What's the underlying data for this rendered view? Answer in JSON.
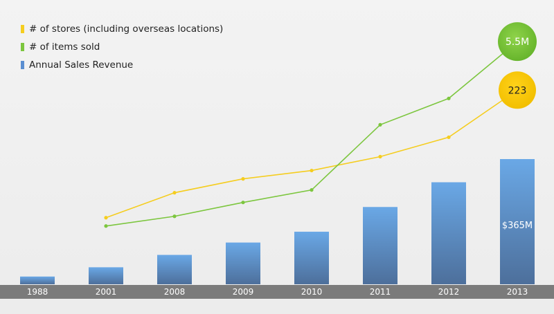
{
  "chart_data": {
    "type": "bar",
    "categories": [
      "1988",
      "2001",
      "2008",
      "2009",
      "2010",
      "2011",
      "2012",
      "2013"
    ],
    "legend_position": "top-left",
    "grid": false,
    "series": [
      {
        "name": "# of stores (including overseas locations)",
        "kind": "line",
        "color": "#f5cd1f",
        "values": [
          null,
          48,
          66,
          76,
          82,
          92,
          106,
          140
        ],
        "end_label": "223"
      },
      {
        "name": "# of items sold",
        "kind": "line",
        "color": "#7cc63e",
        "values": [
          null,
          42,
          49,
          59,
          68,
          115,
          134,
          175
        ],
        "end_label": "5.5M"
      },
      {
        "name": "Annual Sales Revenue",
        "kind": "bar",
        "color": "#5b8fd1",
        "values": [
          5,
          11,
          19,
          27,
          34,
          50,
          66,
          81
        ],
        "end_label": "$365M"
      }
    ],
    "bar_ylim": [
      0,
      100
    ],
    "line_ylim": [
      0,
      190
    ]
  }
}
